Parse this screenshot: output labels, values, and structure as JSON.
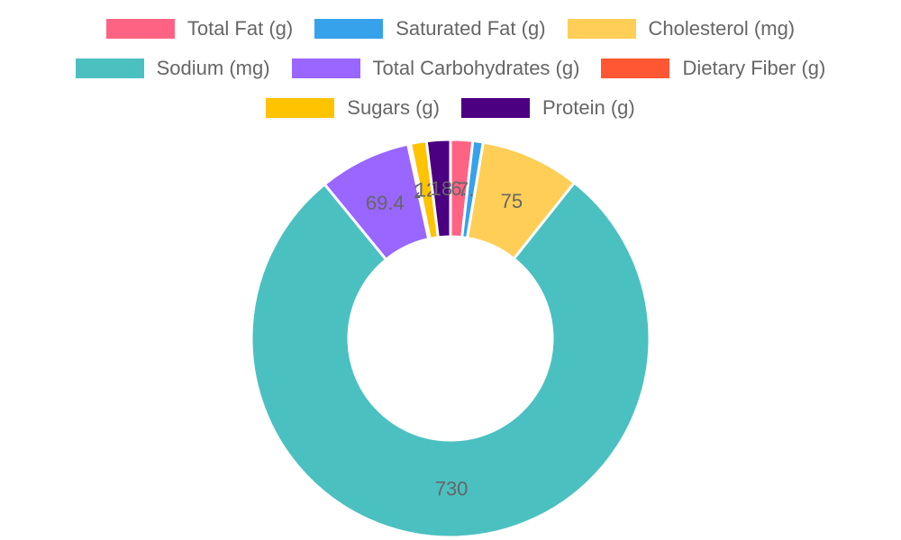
{
  "chart_data": {
    "type": "doughnut",
    "legend_position": "top",
    "series": [
      {
        "name": "Total Fat (g)",
        "value": 16.7,
        "label": "16.7",
        "color": "#ff6384"
      },
      {
        "name": "Saturated Fat (g)",
        "value": 7.8,
        "label": "7.8",
        "color": "#36a2eb"
      },
      {
        "name": "Cholesterol (mg)",
        "value": 75,
        "label": "75",
        "color": "#ffce56"
      },
      {
        "name": "Sodium (mg)",
        "value": 730,
        "label": "730",
        "color": "#4bc0c0"
      },
      {
        "name": "Total Carbohydrates (g)",
        "value": 69.4,
        "label": "69.4",
        "color": "#9966ff"
      },
      {
        "name": "Dietary Fiber (g)",
        "value": 2,
        "label": "2",
        "color": "#ff5733"
      },
      {
        "name": "Sugars (g)",
        "value": 12,
        "label": "12",
        "color": "#ffc300"
      },
      {
        "name": "Protein (g)",
        "value": 18,
        "label": "18",
        "color": "#4b0082"
      }
    ]
  }
}
